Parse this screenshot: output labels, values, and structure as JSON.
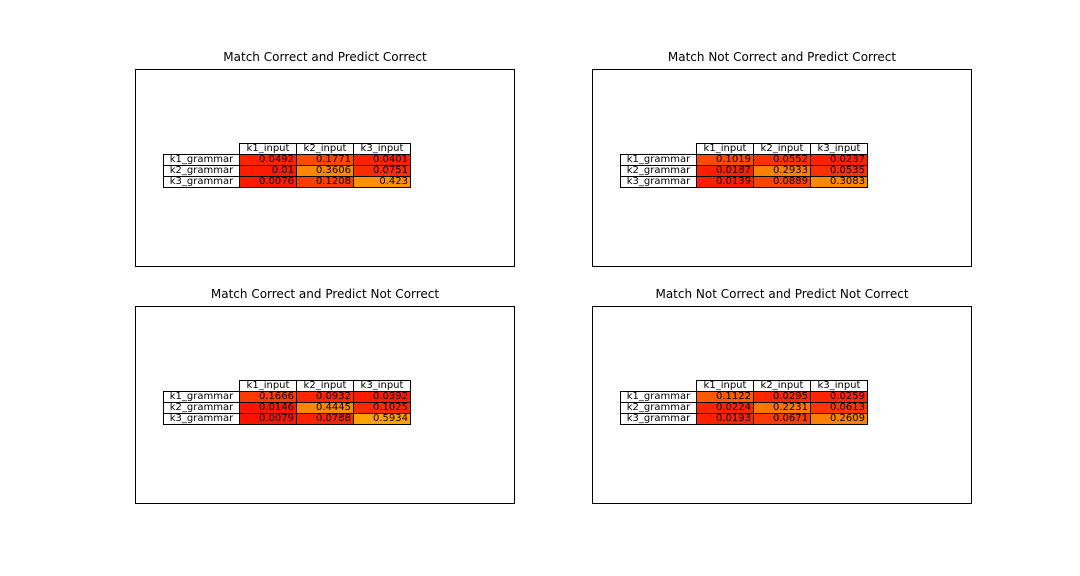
{
  "chart_data": [
    {
      "type": "table",
      "title": "Match Correct and Predict Correct",
      "columns": [
        "k1_input",
        "k2_input",
        "k3_input"
      ],
      "rows": [
        "k1_grammar",
        "k2_grammar",
        "k3_grammar"
      ],
      "cells": [
        [
          "0.0492",
          "0.1771",
          "0.0401"
        ],
        [
          "0.01",
          "0.3606",
          "0.0751"
        ],
        [
          "0.0076",
          "0.1208",
          "0.423"
        ]
      ],
      "colors": [
        [
          "#ff2200",
          "#ff4800",
          "#ff2100"
        ],
        [
          "#ff1a00",
          "#ff8700",
          "#ff2c00"
        ],
        [
          "#ff1a00",
          "#ff3c00",
          "#ff9100"
        ]
      ]
    },
    {
      "type": "table",
      "title": "Match Not Correct and Predict Correct",
      "columns": [
        "k1_input",
        "k2_input",
        "k3_input"
      ],
      "rows": [
        "k1_grammar",
        "k2_grammar",
        "k3_grammar"
      ],
      "cells": [
        [
          "0.1019",
          "0.0552",
          "0.0237"
        ],
        [
          "0.0187",
          "0.2933",
          "0.0535"
        ],
        [
          "0.0139",
          "0.0889",
          "0.3083"
        ]
      ],
      "colors": [
        [
          "#ff4a00",
          "#ff3100",
          "#ff2000"
        ],
        [
          "#ff1e00",
          "#ff7f00",
          "#ff3000"
        ],
        [
          "#ff1c00",
          "#ff4000",
          "#ff8700"
        ]
      ]
    },
    {
      "type": "table",
      "title": "Match Correct and Predict Not Correct",
      "columns": [
        "k1_input",
        "k2_input",
        "k3_input"
      ],
      "rows": [
        "k1_grammar",
        "k2_grammar",
        "k3_grammar"
      ],
      "cells": [
        [
          "0.1666",
          "0.0932",
          "0.0392"
        ],
        [
          "0.0146",
          "0.4445",
          "0.1025"
        ],
        [
          "0.0079",
          "0.0788",
          "0.5934"
        ]
      ],
      "colors": [
        [
          "#ff3a00",
          "#ff2600",
          "#ff1a00"
        ],
        [
          "#ff1500",
          "#ff8600",
          "#ff2800"
        ],
        [
          "#ff1200",
          "#ff2200",
          "#ffa200"
        ]
      ]
    },
    {
      "type": "table",
      "title": "Match Not Correct and Predict Not Correct",
      "columns": [
        "k1_input",
        "k2_input",
        "k3_input"
      ],
      "rows": [
        "k1_grammar",
        "k2_grammar",
        "k3_grammar"
      ],
      "cells": [
        [
          "0.1122",
          "0.0295",
          "0.0259"
        ],
        [
          "0.0224",
          "0.2231",
          "0.0613"
        ],
        [
          "0.0193",
          "0.0671",
          "0.2609"
        ]
      ],
      "colors": [
        [
          "#ff5a00",
          "#ff2600",
          "#ff2400"
        ],
        [
          "#ff2300",
          "#ff7500",
          "#ff3500"
        ],
        [
          "#ff2100",
          "#ff3a00",
          "#ff8000"
        ]
      ]
    }
  ]
}
